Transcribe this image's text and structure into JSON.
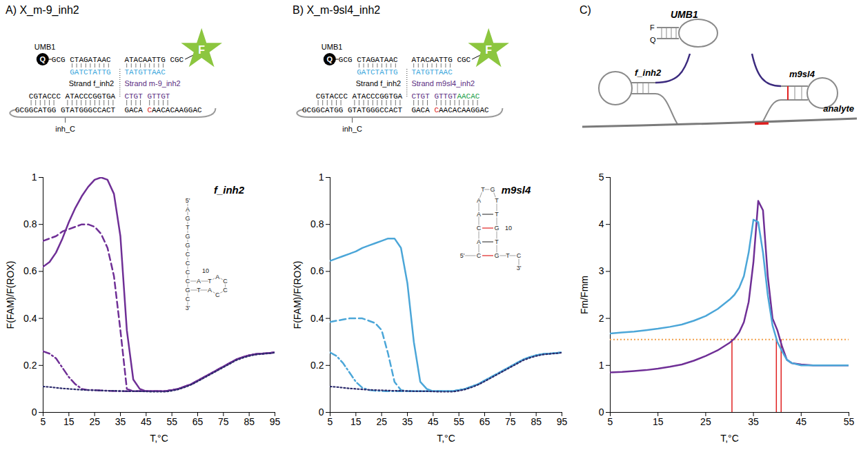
{
  "diagrams": [
    {
      "heading": "A) X_m-9_inh2",
      "umb": "UMB1",
      "quencher": "Q",
      "fluorophore": "F",
      "line1": [
        "GCG",
        "CTAGATAAC",
        "ATACAATTG",
        "CGC"
      ],
      "line2": [
        "GATCTATTG",
        "TATGTTAAC"
      ],
      "line2_color": "#3aa6dc",
      "strand_labels": [
        "Strand f_inh2",
        "Strand m-9_inh2"
      ],
      "strand_label_colors": [
        "#000000",
        "#5a2d82"
      ],
      "line4": [
        {
          "text": "CGTACCC ATACCCGGTGA",
          "color": "#000000"
        },
        {
          "text": "CTGT",
          "color": "#5a2d82"
        },
        {
          "text": "GTTGT",
          "color": "#5a2d82"
        }
      ],
      "line5": [
        {
          "text": "GCGGCATGG GTATGGGCCACT",
          "color": "#000000"
        },
        {
          "text": "GACA",
          "color": "#000000"
        },
        {
          "text": "C",
          "color": "#e02020"
        },
        {
          "text": "AACACAAGGAC",
          "color": "#000000"
        }
      ],
      "analyte_label": "inh_C"
    },
    {
      "heading": "B) X_m-9sl4_inh2",
      "umb": "UMB1",
      "quencher": "Q",
      "fluorophore": "F",
      "line1": [
        "GCG",
        "CTAGATAAC",
        "ATACAATTG",
        "CGC"
      ],
      "line2": [
        "GATCTATTG",
        "TATGTTAAC"
      ],
      "line2_color": "#3aa6dc",
      "strand_labels": [
        "Strand f_inh2",
        "Strand m9sl4_inh2"
      ],
      "strand_label_colors": [
        "#000000",
        "#5a2d82"
      ],
      "line4": [
        {
          "text": "CGTACCC ATACCCGGTGA",
          "color": "#000000"
        },
        {
          "text": "CTGT",
          "color": "#5a2d82"
        },
        {
          "text": "GTTGT",
          "color": "#5a2d82"
        },
        {
          "text": "AACAC",
          "color": "#1a9e48"
        }
      ],
      "line5": [
        {
          "text": "GCGGCATGG GTATGGGCCACT",
          "color": "#000000"
        },
        {
          "text": "GACA",
          "color": "#000000"
        },
        {
          "text": "C",
          "color": "#e02020"
        },
        {
          "text": "AACACAAGGAC",
          "color": "#000000"
        }
      ],
      "analyte_label": "inh_C"
    },
    {
      "heading": "C)",
      "umb": "UMB1",
      "fluorophore": "F",
      "quencher": "Q",
      "probe1": "f_inh2",
      "probe2": "m9sl4",
      "analyte": "analyte",
      "strand_color": "#3b2a7e",
      "mismatch_color": "#e02020"
    }
  ],
  "chart_data": [
    {
      "type": "line",
      "x_label": "T,°C",
      "y_label": "F(FAM)/F(ROX)",
      "xlim": [
        5,
        95
      ],
      "xticks": [
        5,
        15,
        25,
        35,
        45,
        55,
        65,
        75,
        85,
        95
      ],
      "ylim": [
        0,
        1
      ],
      "yticks": [
        0,
        0.2,
        0.4,
        0.6,
        0.8,
        1
      ],
      "x": [
        5,
        7.5,
        10,
        12.5,
        15,
        17.5,
        20,
        22.5,
        25,
        27.5,
        30,
        32.5,
        35,
        37.5,
        40,
        42.5,
        45,
        47.5,
        50,
        52.5,
        55,
        57.5,
        60,
        62.5,
        65,
        67.5,
        70,
        72.5,
        75,
        77.5,
        80,
        82.5,
        85,
        87.5,
        90,
        92.5,
        95
      ],
      "series": [
        {
          "color": "#6f2f96",
          "line_style": "solid",
          "values": [
            0.62,
            0.64,
            0.68,
            0.74,
            0.81,
            0.87,
            0.92,
            0.96,
            0.99,
            1.0,
            0.99,
            0.93,
            0.75,
            0.35,
            0.14,
            0.1,
            0.09,
            0.09,
            0.09,
            0.09,
            0.095,
            0.1,
            0.11,
            0.12,
            0.135,
            0.15,
            0.165,
            0.18,
            0.195,
            0.21,
            0.225,
            0.235,
            0.243,
            0.248,
            0.25,
            0.252,
            0.255
          ]
        },
        {
          "color": "#6f2f96",
          "line_style": "dashed",
          "values": [
            0.73,
            0.74,
            0.75,
            0.77,
            0.78,
            0.79,
            0.8,
            0.8,
            0.79,
            0.76,
            0.7,
            0.58,
            0.35,
            0.1,
            0.09,
            0.09,
            0.09,
            0.09,
            0.09,
            0.09,
            0.095,
            0.1,
            0.11,
            0.12,
            0.135,
            0.15,
            0.165,
            0.18,
            0.195,
            0.21,
            0.225,
            0.235,
            0.243,
            0.248,
            0.25,
            0.252,
            0.255
          ]
        },
        {
          "color": "#6f2f96",
          "line_style": "dashdot",
          "values": [
            0.26,
            0.25,
            0.23,
            0.19,
            0.15,
            0.12,
            0.1,
            0.095,
            0.095,
            0.093,
            0.092,
            0.091,
            0.09,
            0.09,
            0.09,
            0.09,
            0.09,
            0.09,
            0.09,
            0.09,
            0.095,
            0.1,
            0.11,
            0.12,
            0.135,
            0.15,
            0.165,
            0.18,
            0.195,
            0.21,
            0.225,
            0.235,
            0.243,
            0.248,
            0.25,
            0.252,
            0.255
          ]
        },
        {
          "color": "#2b2a6b",
          "line_style": "dotted",
          "values": [
            0.11,
            0.108,
            0.105,
            0.102,
            0.1,
            0.098,
            0.096,
            0.095,
            0.094,
            0.093,
            0.092,
            0.092,
            0.091,
            0.09,
            0.09,
            0.09,
            0.089,
            0.088,
            0.088,
            0.088,
            0.092,
            0.098,
            0.107,
            0.118,
            0.132,
            0.147,
            0.162,
            0.177,
            0.192,
            0.207,
            0.222,
            0.232,
            0.24,
            0.246,
            0.249,
            0.251,
            0.254
          ]
        }
      ],
      "inset": {
        "label": "f_inh2",
        "letters": [
          "5'",
          "A",
          "G",
          "T",
          "G",
          "G",
          "C",
          "C",
          "C",
          "C",
          "G",
          "C",
          "3'",
          "A",
          "T",
          "T",
          "A",
          "C",
          "C",
          "C",
          "A",
          "10"
        ]
      }
    },
    {
      "type": "line",
      "x_label": "T,°C",
      "y_label": "F(FAM)/F(ROX)",
      "xlim": [
        5,
        95
      ],
      "xticks": [
        5,
        15,
        25,
        35,
        45,
        55,
        65,
        75,
        85,
        95
      ],
      "ylim": [
        0,
        1
      ],
      "yticks": [
        0,
        0.2,
        0.4,
        0.6,
        0.8,
        1
      ],
      "x": [
        5,
        7.5,
        10,
        12.5,
        15,
        17.5,
        20,
        22.5,
        25,
        27.5,
        30,
        32.5,
        35,
        37.5,
        40,
        42.5,
        45,
        47.5,
        50,
        52.5,
        55,
        57.5,
        60,
        62.5,
        65,
        67.5,
        70,
        72.5,
        75,
        77.5,
        80,
        82.5,
        85,
        87.5,
        90,
        92.5,
        95
      ],
      "series": [
        {
          "color": "#4ba6d8",
          "line_style": "solid",
          "values": [
            0.645,
            0.655,
            0.665,
            0.675,
            0.685,
            0.7,
            0.71,
            0.72,
            0.73,
            0.74,
            0.74,
            0.7,
            0.55,
            0.3,
            0.13,
            0.1,
            0.09,
            0.09,
            0.09,
            0.09,
            0.095,
            0.1,
            0.11,
            0.12,
            0.135,
            0.15,
            0.165,
            0.18,
            0.195,
            0.21,
            0.225,
            0.235,
            0.243,
            0.248,
            0.25,
            0.252,
            0.255
          ]
        },
        {
          "color": "#4ba6d8",
          "line_style": "dashed",
          "values": [
            0.385,
            0.39,
            0.395,
            0.4,
            0.4,
            0.4,
            0.39,
            0.38,
            0.35,
            0.25,
            0.13,
            0.095,
            0.09,
            0.09,
            0.09,
            0.09,
            0.09,
            0.09,
            0.09,
            0.09,
            0.095,
            0.1,
            0.11,
            0.12,
            0.135,
            0.15,
            0.165,
            0.18,
            0.195,
            0.21,
            0.225,
            0.235,
            0.243,
            0.248,
            0.25,
            0.252,
            0.255
          ]
        },
        {
          "color": "#4ba6d8",
          "line_style": "dashdot",
          "values": [
            0.255,
            0.24,
            0.21,
            0.17,
            0.13,
            0.105,
            0.095,
            0.092,
            0.091,
            0.09,
            0.09,
            0.09,
            0.09,
            0.09,
            0.09,
            0.09,
            0.09,
            0.09,
            0.09,
            0.09,
            0.095,
            0.1,
            0.11,
            0.12,
            0.135,
            0.15,
            0.165,
            0.18,
            0.195,
            0.21,
            0.225,
            0.235,
            0.243,
            0.248,
            0.25,
            0.252,
            0.255
          ]
        },
        {
          "color": "#2b2a6b",
          "line_style": "dotted",
          "values": [
            0.11,
            0.108,
            0.105,
            0.102,
            0.1,
            0.098,
            0.096,
            0.095,
            0.094,
            0.093,
            0.092,
            0.092,
            0.091,
            0.09,
            0.09,
            0.09,
            0.089,
            0.088,
            0.088,
            0.088,
            0.092,
            0.098,
            0.107,
            0.118,
            0.132,
            0.147,
            0.162,
            0.177,
            0.192,
            0.207,
            0.222,
            0.232,
            0.24,
            0.246,
            0.249,
            0.251,
            0.254
          ]
        }
      ],
      "inset": {
        "label": "m9sl4",
        "letters": [
          "T",
          "G",
          "A",
          "T",
          "A",
          "T",
          "C",
          "G",
          "A",
          "T",
          "C",
          "G",
          "5'",
          "T",
          "C",
          "3'",
          "10"
        ],
        "pair_colors": [
          "#444444",
          "#e02020",
          "#444444",
          "#e02020"
        ]
      }
    },
    {
      "type": "line",
      "x_label": "T,°C",
      "y_label": "Fm/Fmm",
      "xlim": [
        5,
        55
      ],
      "xticks": [
        5,
        15,
        25,
        35,
        45,
        55
      ],
      "ylim": [
        0,
        5
      ],
      "yticks": [
        0,
        1,
        2,
        3,
        4,
        5
      ],
      "x": [
        5,
        7.5,
        10,
        12.5,
        15,
        17.5,
        20,
        22.5,
        25,
        27.5,
        30,
        31,
        32,
        33,
        34,
        35,
        36,
        37,
        38,
        39,
        40,
        41,
        42,
        43,
        45,
        47.5,
        50,
        52.5,
        55
      ],
      "series": [
        {
          "color": "#6f2f96",
          "line_style": "solid",
          "values": [
            0.85,
            0.86,
            0.88,
            0.9,
            0.93,
            0.97,
            1.02,
            1.1,
            1.2,
            1.32,
            1.48,
            1.57,
            1.7,
            1.92,
            2.35,
            3.2,
            4.5,
            4.3,
            2.9,
            2.0,
            1.75,
            1.4,
            1.12,
            1.05,
            1.02,
            1.0,
            1.0,
            1.0,
            1.0
          ]
        },
        {
          "color": "#4ba6d8",
          "line_style": "solid",
          "values": [
            1.68,
            1.7,
            1.72,
            1.75,
            1.78,
            1.82,
            1.87,
            1.95,
            2.05,
            2.2,
            2.4,
            2.5,
            2.65,
            2.9,
            3.4,
            4.1,
            4.05,
            3.4,
            2.5,
            1.85,
            1.5,
            1.3,
            1.12,
            1.05,
            1.0,
            1.0,
            1.0,
            1.0,
            1.0
          ]
        }
      ],
      "threshold": {
        "value": 1.55,
        "color": "#f2a04a",
        "line_style": "dotted"
      },
      "crossings": {
        "x": [
          30.5,
          39.8,
          40.8
        ],
        "color": "#e02020"
      }
    }
  ]
}
